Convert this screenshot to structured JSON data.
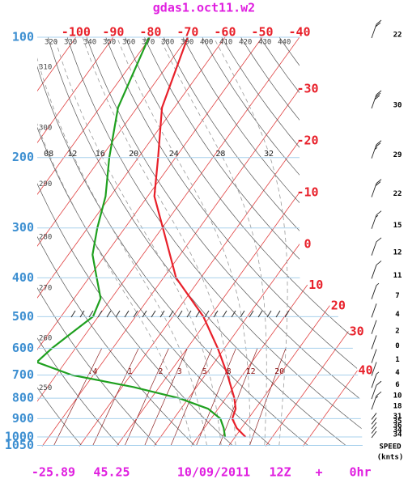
{
  "chart_data": {
    "type": "skewt",
    "title": "gdas1.oct11.w2",
    "ylog": true,
    "ylim": [
      100,
      1050
    ],
    "yticks": [
      100,
      200,
      300,
      400,
      500,
      600,
      700,
      800,
      900,
      1000,
      1050
    ],
    "xlim": [
      -110.4,
      -40
    ],
    "xticks": [
      -100,
      -90,
      -80,
      -70,
      -60,
      -50,
      -40,
      -30,
      -20,
      -10,
      0,
      10,
      20,
      30,
      40
    ],
    "dry_adiabats": [
      250,
      260,
      270,
      280,
      290,
      300,
      310,
      320,
      330,
      340,
      350,
      360,
      370,
      380,
      390,
      400,
      410,
      420,
      430,
      440
    ],
    "moist_adiabats": [
      {
        "value": 8,
        "label": "08"
      },
      12,
      16,
      20,
      24,
      28,
      32
    ],
    "mixing_ratios": [
      {
        "value": 0.4,
        "label": ".4"
      },
      1,
      2,
      3,
      5,
      8,
      12,
      20
    ],
    "series": [
      {
        "color": "#e8202a",
        "pressure": [
          100,
          150,
          200,
          250,
          300,
          400,
          500,
          600,
          700,
          800,
          850,
          900,
          950,
          1000
        ],
        "values": [
          -70,
          -63.3,
          -54.7,
          -48.2,
          -39.8,
          -26.6,
          -11.8,
          -1.8,
          6,
          12.3,
          14.7,
          15.7,
          18.7,
          22.8
        ]
      },
      {
        "color": "#1fa01f",
        "pressure": [
          100,
          150,
          200,
          250,
          300,
          350,
          400,
          450,
          500,
          550,
          600,
          650,
          700,
          750,
          800,
          850,
          900,
          950,
          1000
        ],
        "values": [
          -80.4,
          -75.1,
          -67.8,
          -61.3,
          -57.4,
          -53.5,
          -47.9,
          -42.9,
          -41.4,
          -44,
          -46.3,
          -47.7,
          -35.8,
          -17,
          -2.5,
          7.3,
          12.5,
          15.2,
          17.3
        ]
      }
    ],
    "wind": {
      "title": "SPEED",
      "unit": "(knts)",
      "pressure": [
        100,
        150,
        200,
        250,
        300,
        350,
        400,
        450,
        500,
        550,
        600,
        650,
        700,
        750,
        800,
        850,
        900,
        925,
        950,
        975,
        1000
      ],
      "speeds": [
        22,
        30,
        29,
        22,
        15,
        12,
        11,
        7,
        4,
        2,
        0,
        1,
        4,
        6,
        10,
        18,
        31,
        35,
        36,
        34,
        34
      ]
    },
    "footer": {
      "latitude": -25.89,
      "longitude": 45.25,
      "date": "10/09/2011",
      "time": "12Z",
      "plus": "+",
      "forecast": "0hr"
    }
  }
}
